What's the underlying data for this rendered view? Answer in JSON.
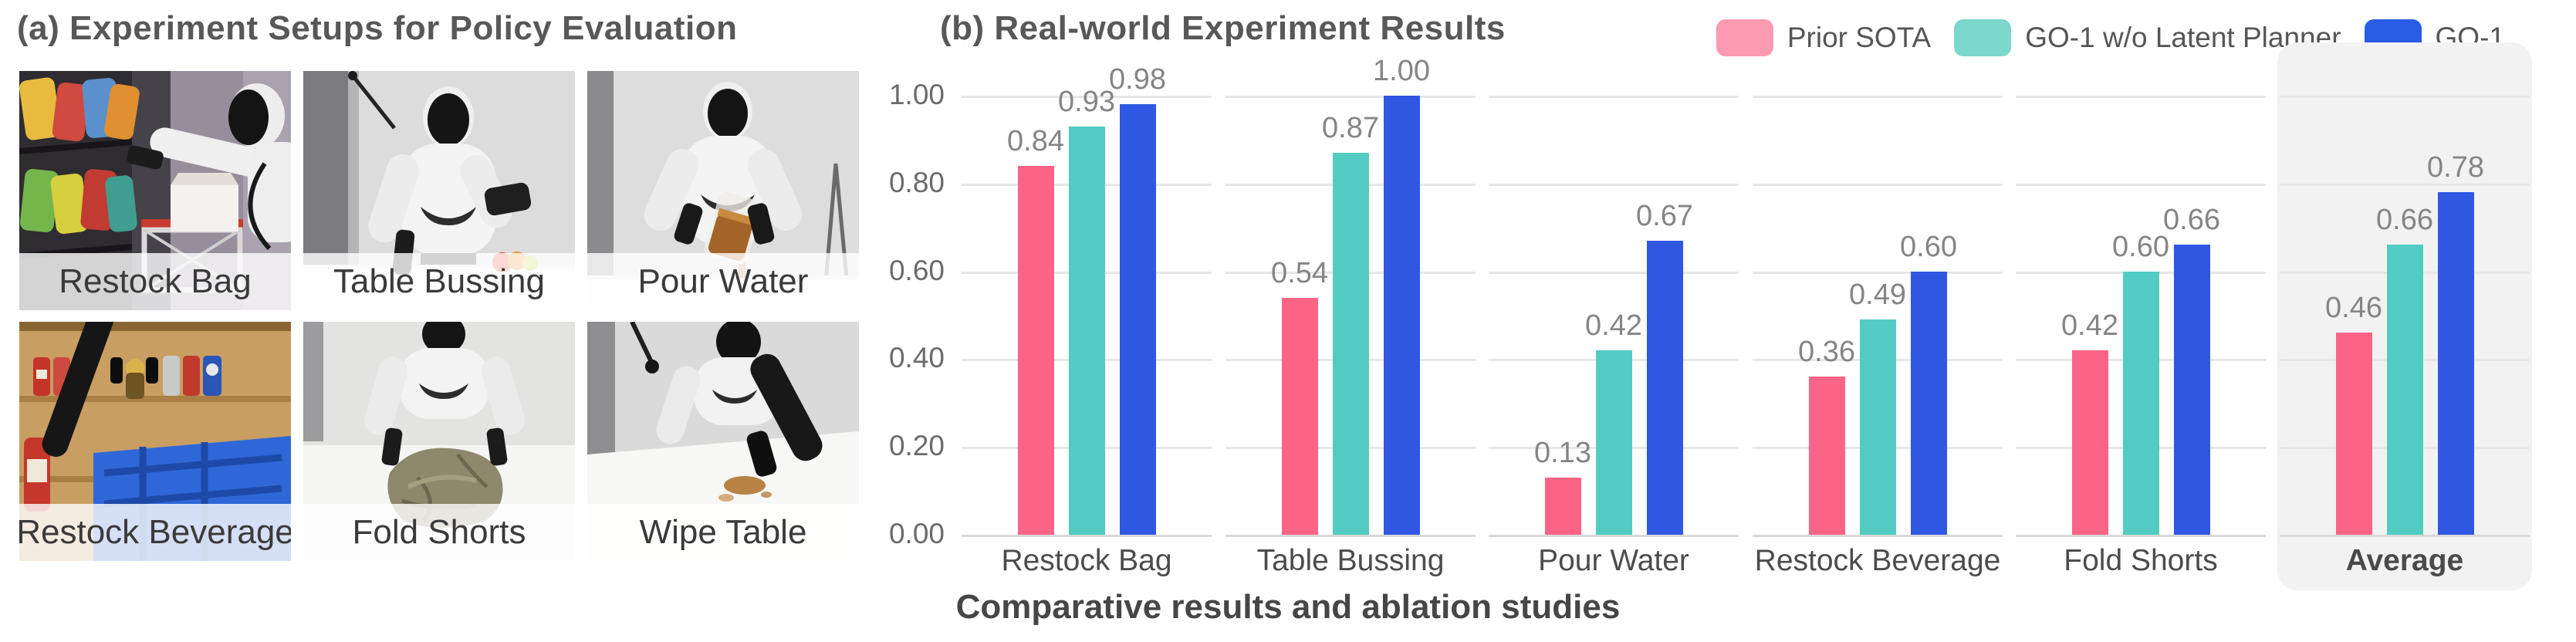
{
  "panel_a": {
    "title": "(a) Experiment Setups for Policy Evaluation",
    "photos": [
      {
        "label": "Restock Bag"
      },
      {
        "label": "Table Bussing"
      },
      {
        "label": "Pour Water"
      },
      {
        "label": "Restock Beverage"
      },
      {
        "label": "Fold Shorts"
      },
      {
        "label": "Wipe Table"
      }
    ]
  },
  "panel_b": {
    "title": "(b) Real-world Experiment Results",
    "caption": "Comparative results and ablation studies",
    "legend": [
      {
        "label": "Prior SOTA",
        "color": "#FC9AB1"
      },
      {
        "label": "GO-1 w/o Latent Planner",
        "color": "#7CD7CD"
      },
      {
        "label": "GO-1",
        "color": "#2B5CE6"
      }
    ]
  },
  "chart_data": {
    "type": "bar",
    "title": "(b) Real-world Experiment Results",
    "categories": [
      "Restock Bag",
      "Table Bussing",
      "Pour Water",
      "Restock Beverage",
      "Fold Shorts",
      "Average"
    ],
    "series": [
      {
        "name": "Prior SOTA",
        "color": "#FB6486",
        "values": [
          0.84,
          0.54,
          0.13,
          0.36,
          0.42,
          0.46
        ]
      },
      {
        "name": "GO-1 w/o Latent Planner",
        "color": "#52CCC2",
        "values": [
          0.93,
          0.87,
          0.42,
          0.49,
          0.6,
          0.66
        ]
      },
      {
        "name": "GO-1",
        "color": "#2F57E2",
        "values": [
          0.98,
          1.0,
          0.67,
          0.6,
          0.66,
          0.78
        ]
      }
    ],
    "xlabel": "",
    "ylabel": "",
    "ylim": [
      0,
      1.0
    ],
    "yticks": [
      "1.00",
      "0.80",
      "0.60",
      "0.40",
      "0.20",
      "0.00"
    ],
    "grid": true,
    "legend_position": "top-right",
    "highlight_category": "Average",
    "value_labels": "2 decimal places above each bar"
  }
}
